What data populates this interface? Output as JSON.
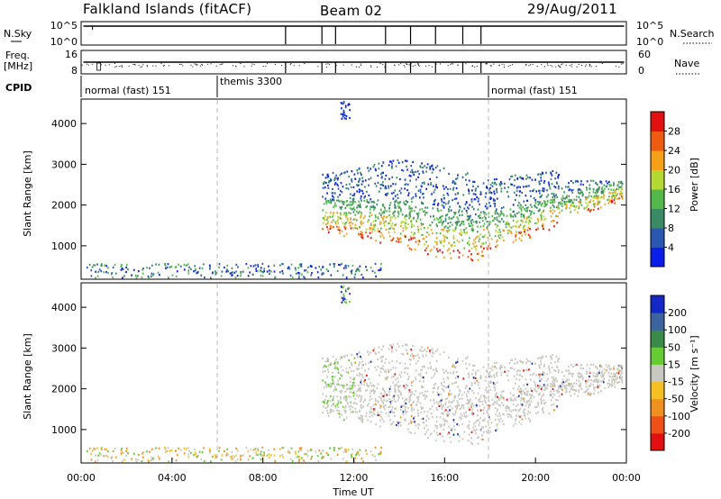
{
  "header": {
    "title": "Falkland Islands (fitACF)",
    "beam": "Beam 02",
    "date": "29/Aug/2011"
  },
  "top_panels": {
    "nsky_label": "N.Sky",
    "nsky_ticks": [
      "10^5",
      "10^0"
    ],
    "nsearch_label": "N.Search",
    "nsearch_ticks": [
      "10^5",
      "10^0"
    ],
    "freq_label_line1": "Freq.",
    "freq_label_line2": "[MHz]",
    "freq_ticks": [
      "16",
      "8"
    ],
    "nave_label": "Nave",
    "nave_ticks": [
      "60",
      "0"
    ],
    "cpid_label": "CPID",
    "cpid_segments": [
      {
        "label": "normal (fast) 151",
        "start_hour": 0
      },
      {
        "label": "themis 3300",
        "start_hour": 6
      },
      {
        "label": "normal (fast) 151",
        "start_hour": 18
      }
    ]
  },
  "chart_data": [
    {
      "type": "heatmap",
      "name": "power-panel",
      "ylabel": "Slant Range [km]",
      "x_range_hours": [
        0,
        24
      ],
      "y_range_km": [
        180,
        4600
      ],
      "yticks": [
        1000,
        2000,
        3000,
        4000
      ],
      "colorbar": {
        "label": "Power [dB]",
        "ticks": [
          4,
          8,
          12,
          16,
          20,
          24,
          28
        ],
        "range": [
          0,
          32
        ],
        "colors": [
          "#0a1eea",
          "#2a56b4",
          "#3a8a66",
          "#55b84a",
          "#b6d832",
          "#f6a018",
          "#ee5a10",
          "#e21010"
        ]
      }
    },
    {
      "type": "heatmap",
      "name": "velocity-panel",
      "ylabel": "Slant Range [km]",
      "xlabel": "Time UT",
      "x_range_hours": [
        0,
        24
      ],
      "y_range_km": [
        180,
        4600
      ],
      "yticks": [
        1000,
        2000,
        3000,
        4000
      ],
      "xticks": [
        "00:00",
        "04:00",
        "08:00",
        "12:00",
        "16:00",
        "20:00",
        "00:00"
      ],
      "colorbar": {
        "label": "Velocity [m s⁻¹]",
        "ticks": [
          "200",
          "100",
          "50",
          "15",
          "-15",
          "-50",
          "-100",
          "-200"
        ],
        "colors": [
          "#1428c8",
          "#3c64a0",
          "#3a8a4a",
          "#66cc33",
          "#c8c8c0",
          "#f6c022",
          "#f09020",
          "#ee5018",
          "#e21010"
        ]
      }
    }
  ]
}
